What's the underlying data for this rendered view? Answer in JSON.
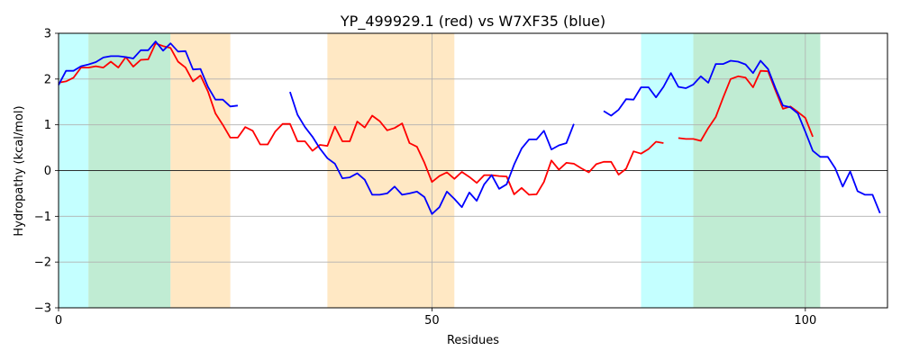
{
  "chart_data": {
    "type": "line",
    "title": "YP_499929.1 (red) vs W7XF35 (blue)",
    "xlabel": "Residues",
    "ylabel": "Hydropathy (kcal/mol)",
    "xlim": [
      0,
      111
    ],
    "ylim": [
      -3,
      3
    ],
    "x_ticks": [
      0,
      50,
      100
    ],
    "y_ticks": [
      -3,
      -2,
      -1,
      0,
      1,
      2,
      3
    ],
    "grid": true,
    "zero_line": true,
    "regions": [
      {
        "start": 0,
        "end": 4,
        "color": "#c4ffff"
      },
      {
        "start": 4,
        "end": 15,
        "color": "#c0ecd3"
      },
      {
        "start": 15,
        "end": 23,
        "color": "#ffe8c4"
      },
      {
        "start": 36,
        "end": 53,
        "color": "#ffe8c4"
      },
      {
        "start": 78,
        "end": 85,
        "color": "#c4ffff"
      },
      {
        "start": 85,
        "end": 102,
        "color": "#c0ecd3"
      }
    ],
    "series": [
      {
        "color": "#ff0000",
        "points": [
          [
            0,
            1.92
          ],
          [
            1,
            1.95
          ],
          [
            2,
            2.03
          ],
          [
            3,
            2.25
          ],
          [
            4,
            2.25
          ],
          [
            5,
            2.28
          ],
          [
            6,
            2.25
          ],
          [
            7,
            2.38
          ],
          [
            8,
            2.25
          ],
          [
            9,
            2.48
          ],
          [
            10,
            2.27
          ],
          [
            11,
            2.42
          ],
          [
            12,
            2.43
          ],
          [
            13,
            2.78
          ],
          [
            14,
            2.72
          ],
          [
            15,
            2.68
          ],
          [
            16,
            2.38
          ],
          [
            17,
            2.25
          ],
          [
            18,
            1.95
          ],
          [
            19,
            2.08
          ],
          [
            20,
            1.73
          ],
          [
            21,
            1.25
          ],
          [
            22,
            1.0
          ],
          [
            23,
            0.72
          ],
          [
            24,
            0.72
          ],
          [
            25,
            0.95
          ],
          [
            26,
            0.87
          ],
          [
            27,
            0.57
          ],
          [
            28,
            0.57
          ],
          [
            29,
            0.85
          ],
          [
            30,
            1.02
          ],
          [
            31,
            1.02
          ],
          [
            32,
            0.64
          ],
          [
            33,
            0.64
          ],
          [
            34,
            0.43
          ],
          [
            35,
            0.56
          ],
          [
            36,
            0.54
          ],
          [
            37,
            0.96
          ],
          [
            38,
            0.64
          ],
          [
            39,
            0.64
          ],
          [
            40,
            1.07
          ],
          [
            41,
            0.94
          ],
          [
            42,
            1.2
          ],
          [
            43,
            1.08
          ],
          [
            44,
            0.88
          ],
          [
            45,
            0.93
          ],
          [
            46,
            1.03
          ],
          [
            47,
            0.6
          ],
          [
            48,
            0.52
          ],
          [
            49,
            0.17
          ],
          [
            50,
            -0.25
          ],
          [
            51,
            -0.12
          ],
          [
            52,
            -0.04
          ],
          [
            53,
            -0.18
          ],
          [
            54,
            -0.03
          ],
          [
            55,
            -0.14
          ],
          [
            56,
            -0.27
          ],
          [
            57,
            -0.1
          ],
          [
            58,
            -0.1
          ],
          [
            59,
            -0.12
          ],
          [
            60,
            -0.13
          ],
          [
            61,
            -0.52
          ],
          [
            62,
            -0.38
          ],
          [
            63,
            -0.53
          ],
          [
            64,
            -0.52
          ],
          [
            65,
            -0.25
          ],
          [
            66,
            0.22
          ],
          [
            67,
            0.02
          ],
          [
            68,
            0.17
          ],
          [
            69,
            0.15
          ],
          [
            70,
            0.05
          ],
          [
            71,
            -0.04
          ],
          [
            72,
            0.14
          ],
          [
            73,
            0.19
          ],
          [
            74,
            0.19
          ],
          [
            75,
            -0.09
          ],
          [
            76,
            0.04
          ],
          [
            77,
            0.42
          ],
          [
            78,
            0.37
          ],
          [
            79,
            0.47
          ],
          [
            80,
            0.63
          ],
          [
            81,
            0.6
          ],
          null,
          [
            83,
            0.71
          ],
          [
            84,
            0.69
          ],
          [
            85,
            0.69
          ],
          [
            86,
            0.65
          ],
          [
            87,
            0.93
          ],
          [
            88,
            1.17
          ],
          [
            89,
            1.6
          ],
          [
            90,
            2.0
          ],
          [
            91,
            2.06
          ],
          [
            92,
            2.03
          ],
          [
            93,
            1.82
          ],
          [
            94,
            2.18
          ],
          [
            95,
            2.17
          ],
          [
            96,
            1.75
          ],
          [
            97,
            1.35
          ],
          [
            98,
            1.4
          ],
          [
            99,
            1.28
          ],
          [
            100,
            1.15
          ],
          [
            101,
            0.74
          ]
        ]
      },
      {
        "color": "#0000ff",
        "points": [
          [
            0,
            1.87
          ],
          [
            1,
            2.18
          ],
          [
            2,
            2.18
          ],
          [
            3,
            2.28
          ],
          [
            4,
            2.32
          ],
          [
            5,
            2.37
          ],
          [
            6,
            2.47
          ],
          [
            7,
            2.5
          ],
          [
            8,
            2.5
          ],
          [
            9,
            2.48
          ],
          [
            10,
            2.45
          ],
          [
            11,
            2.63
          ],
          [
            12,
            2.63
          ],
          [
            13,
            2.82
          ],
          [
            14,
            2.62
          ],
          [
            15,
            2.78
          ],
          [
            16,
            2.6
          ],
          [
            17,
            2.61
          ],
          [
            18,
            2.21
          ],
          [
            19,
            2.22
          ],
          [
            20,
            1.83
          ],
          [
            21,
            1.55
          ],
          [
            22,
            1.55
          ],
          [
            23,
            1.4
          ],
          [
            24,
            1.42
          ],
          null,
          [
            31,
            1.72
          ],
          [
            32,
            1.22
          ],
          [
            33,
            0.95
          ],
          [
            34,
            0.74
          ],
          [
            35,
            0.48
          ],
          [
            36,
            0.27
          ],
          [
            37,
            0.15
          ],
          [
            38,
            -0.17
          ],
          [
            39,
            -0.15
          ],
          [
            40,
            -0.06
          ],
          [
            41,
            -0.2
          ],
          [
            42,
            -0.53
          ],
          [
            43,
            -0.53
          ],
          [
            44,
            -0.5
          ],
          [
            45,
            -0.35
          ],
          [
            46,
            -0.53
          ],
          [
            47,
            -0.5
          ],
          [
            48,
            -0.46
          ],
          [
            49,
            -0.58
          ],
          [
            50,
            -0.95
          ],
          [
            51,
            -0.8
          ],
          [
            52,
            -0.46
          ],
          [
            53,
            -0.62
          ],
          [
            54,
            -0.8
          ],
          [
            55,
            -0.48
          ],
          [
            56,
            -0.66
          ],
          [
            57,
            -0.3
          ],
          [
            58,
            -0.1
          ],
          [
            59,
            -0.4
          ],
          [
            60,
            -0.3
          ],
          [
            61,
            0.13
          ],
          [
            62,
            0.48
          ],
          [
            63,
            0.68
          ],
          [
            64,
            0.68
          ],
          [
            65,
            0.87
          ],
          [
            66,
            0.46
          ],
          [
            67,
            0.55
          ],
          [
            68,
            0.6
          ],
          [
            69,
            1.02
          ],
          null,
          [
            73,
            1.3
          ],
          [
            74,
            1.2
          ],
          [
            75,
            1.33
          ],
          [
            76,
            1.56
          ],
          [
            77,
            1.55
          ],
          [
            78,
            1.82
          ],
          [
            79,
            1.82
          ],
          [
            80,
            1.6
          ],
          [
            81,
            1.83
          ],
          [
            82,
            2.13
          ],
          [
            83,
            1.83
          ],
          [
            84,
            1.8
          ],
          [
            85,
            1.88
          ],
          [
            86,
            2.06
          ],
          [
            87,
            1.92
          ],
          [
            88,
            2.33
          ],
          [
            89,
            2.33
          ],
          [
            90,
            2.4
          ],
          [
            91,
            2.38
          ],
          [
            92,
            2.32
          ],
          [
            93,
            2.13
          ],
          [
            94,
            2.4
          ],
          [
            95,
            2.22
          ],
          [
            96,
            1.8
          ],
          [
            97,
            1.42
          ],
          [
            98,
            1.38
          ],
          [
            99,
            1.25
          ],
          [
            100,
            0.85
          ],
          [
            101,
            0.43
          ],
          [
            102,
            0.3
          ],
          [
            103,
            0.3
          ],
          [
            104,
            0.05
          ],
          [
            105,
            -0.35
          ],
          [
            106,
            -0.02
          ],
          [
            107,
            -0.45
          ],
          [
            108,
            -0.53
          ],
          [
            109,
            -0.53
          ],
          [
            110,
            -0.93
          ]
        ]
      }
    ]
  }
}
